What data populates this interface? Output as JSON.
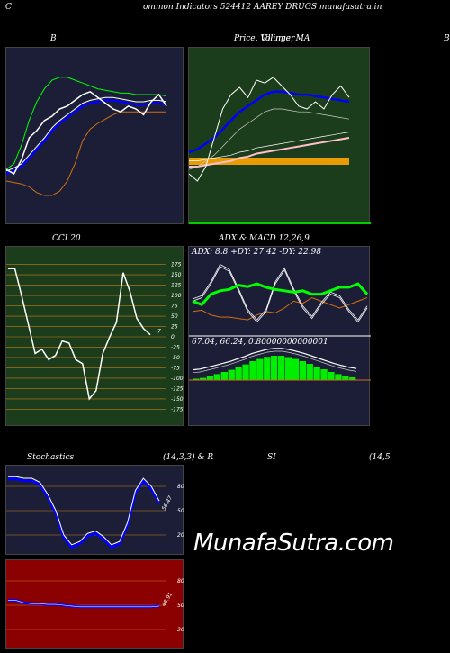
{
  "header": {
    "left_letter": "C",
    "title": "ommon  Indicators 524412  AAREY DRUGS munafasutra.in",
    "right_letter": "C"
  },
  "panels": {
    "bb_title": "B",
    "price_title": "Price,  Volume,  MA",
    "price_title_overlap": "Ullinger",
    "right_edge_letter": "B",
    "cci_title": "CCI 20",
    "cci_right_label": "7",
    "adx_title": "ADX  & MACD 12,26,9",
    "adx_values": "ADX: 8.8  +DY: 27.42  -DY: 22.98",
    "macd_values": "67.04,  66.24,  0.80000000000001",
    "stoch_title_left": "Stochastics",
    "stoch_title_mid": "(14,3,3) & R",
    "stoch_title_right": "SI",
    "stoch_title_far": "(14,5",
    "stoch_value_label": "56.47",
    "rsi_value_label": "48.91"
  },
  "watermark": "MunafaSutra.com",
  "colors": {
    "bb_bg": "#1c1e38",
    "price_bg": "#1b3d1b",
    "cci_bg": "#1b3d1b",
    "adx_bg": "#1c1e38",
    "stoch_bg": "#1c1e38",
    "rsi_bg": "#8b0000",
    "grid_orange": "#c87c1a"
  },
  "chart_data": [
    {
      "type": "line",
      "name": "bollinger",
      "series": [
        {
          "color": "#ffffff",
          "values": [
            0.28,
            0.25,
            0.35,
            0.5,
            0.55,
            0.62,
            0.65,
            0.7,
            0.72,
            0.76,
            0.8,
            0.82,
            0.78,
            0.74,
            0.7,
            0.68,
            0.72,
            0.7,
            0.66,
            0.75,
            0.8,
            0.72
          ]
        },
        {
          "color": "#0000ff",
          "values": [
            0.25,
            0.27,
            0.3,
            0.36,
            0.42,
            0.48,
            0.55,
            0.6,
            0.64,
            0.68,
            0.72,
            0.74,
            0.75,
            0.76,
            0.76,
            0.75,
            0.74,
            0.73,
            0.73,
            0.74,
            0.74,
            0.73
          ]
        },
        {
          "color": "#00ff00",
          "values": [
            0.28,
            0.32,
            0.45,
            0.62,
            0.75,
            0.84,
            0.9,
            0.92,
            0.92,
            0.9,
            0.88,
            0.86,
            0.84,
            0.83,
            0.82,
            0.81,
            0.81,
            0.8,
            0.8,
            0.8,
            0.8,
            0.79
          ]
        },
        {
          "color": "#d07010",
          "values": [
            0.2,
            0.19,
            0.18,
            0.16,
            0.12,
            0.1,
            0.1,
            0.13,
            0.2,
            0.32,
            0.48,
            0.56,
            0.6,
            0.63,
            0.66,
            0.68,
            0.68,
            0.68,
            0.68,
            0.68,
            0.68,
            0.68
          ]
        }
      ]
    },
    {
      "type": "line",
      "name": "price_volume_ma",
      "series": [
        {
          "color": "#ffffff",
          "values": [
            0.25,
            0.2,
            0.3,
            0.5,
            0.7,
            0.8,
            0.85,
            0.78,
            0.9,
            0.88,
            0.92,
            0.86,
            0.8,
            0.72,
            0.7,
            0.75,
            0.7,
            0.8,
            0.86,
            0.78
          ]
        },
        {
          "color": "#0000ff",
          "values": [
            0.4,
            0.42,
            0.46,
            0.5,
            0.56,
            0.62,
            0.68,
            0.72,
            0.76,
            0.8,
            0.82,
            0.82,
            0.81,
            0.8,
            0.8,
            0.79,
            0.78,
            0.77,
            0.76,
            0.75
          ]
        },
        {
          "color": "#ffa500",
          "values": [
            0.48,
            0.48,
            0.48,
            0.48,
            0.48,
            0.48,
            0.48,
            0.48,
            0.48,
            0.48,
            0.48,
            0.48,
            0.48,
            0.48,
            0.48,
            0.48,
            0.48,
            0.48,
            0.48,
            0.48
          ]
        },
        {
          "color": "#ffc0cb",
          "values": [
            0.3,
            0.3,
            0.31,
            0.32,
            0.33,
            0.34,
            0.36,
            0.37,
            0.39,
            0.4,
            0.41,
            0.42,
            0.43,
            0.44,
            0.45,
            0.46,
            0.47,
            0.48,
            0.49,
            0.5
          ]
        }
      ]
    },
    {
      "type": "line",
      "name": "cci_20",
      "y_ticks": [
        175,
        150,
        125,
        100,
        75,
        50,
        25,
        0,
        -25,
        -50,
        -75,
        -100,
        -125,
        -150,
        -175
      ],
      "ylim": [
        -185,
        185
      ],
      "values": [
        165,
        165,
        100,
        30,
        -40,
        -30,
        -55,
        -45,
        -10,
        -15,
        -55,
        -65,
        -150,
        -130,
        -40,
        0,
        35,
        155,
        110,
        45,
        20,
        5
      ]
    },
    {
      "type": "line",
      "name": "adx",
      "series": [
        {
          "name": "ADX",
          "color": "#ffffff",
          "values": [
            0.45,
            0.5,
            0.7,
            0.95,
            0.88,
            0.6,
            0.3,
            0.15,
            0.3,
            0.7,
            0.9,
            0.6,
            0.35,
            0.2,
            0.4,
            0.55,
            0.5,
            0.3,
            0.15,
            0.35
          ]
        },
        {
          "name": "+DY",
          "color": "#00ff00",
          "values": [
            0.45,
            0.4,
            0.55,
            0.6,
            0.62,
            0.68,
            0.66,
            0.7,
            0.65,
            0.62,
            0.6,
            0.58,
            0.6,
            0.55,
            0.55,
            0.6,
            0.65,
            0.65,
            0.7,
            0.55
          ]
        },
        {
          "name": "-DY",
          "color": "#d07010",
          "values": [
            0.3,
            0.32,
            0.25,
            0.22,
            0.22,
            0.2,
            0.18,
            0.25,
            0.3,
            0.28,
            0.35,
            0.45,
            0.42,
            0.5,
            0.45,
            0.4,
            0.35,
            0.4,
            0.45,
            0.5
          ]
        }
      ]
    },
    {
      "type": "bar",
      "name": "macd",
      "values": [
        0.05,
        0.08,
        0.15,
        0.22,
        0.3,
        0.38,
        0.48,
        0.58,
        0.7,
        0.78,
        0.86,
        0.9,
        0.9,
        0.85,
        0.78,
        0.7,
        0.6,
        0.5,
        0.4,
        0.3,
        0.22,
        0.15,
        0.1
      ]
    },
    {
      "type": "line",
      "name": "stochastics",
      "y_ticks": [
        80,
        50,
        20
      ],
      "values": [
        92,
        92,
        90,
        90,
        85,
        70,
        50,
        20,
        8,
        12,
        22,
        25,
        18,
        8,
        12,
        35,
        75,
        90,
        80,
        62
      ]
    },
    {
      "type": "line",
      "name": "rsi",
      "y_ticks": [
        80,
        50,
        20
      ],
      "values": [
        56,
        56,
        53,
        52,
        52,
        51,
        51,
        50,
        49,
        48,
        48,
        48,
        48,
        48,
        48,
        48,
        48,
        48,
        48,
        49
      ]
    }
  ]
}
